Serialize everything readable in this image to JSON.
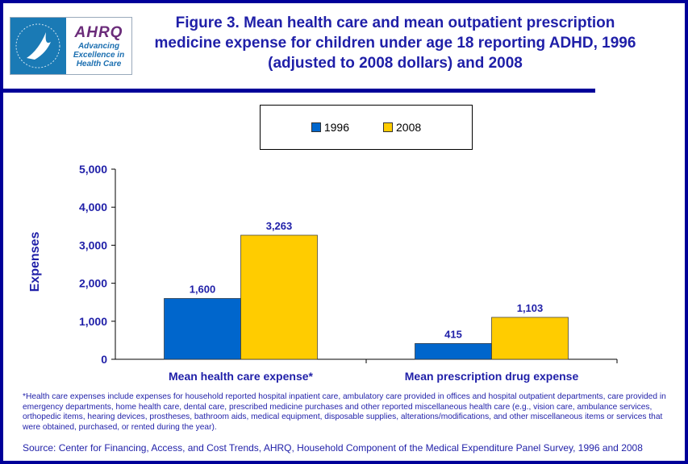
{
  "title": "Figure 3. Mean health care and mean outpatient prescription medicine expense for children under age 18 reporting ADHD, 1996 (adjusted to 2008 dollars) and 2008",
  "logo": {
    "name": "AHRQ",
    "tagline": "Advancing Excellence in Health Care",
    "seal_text": "DEPARTMENT OF HEALTH & HUMAN SERVICES USA"
  },
  "colors": {
    "1996": "#0066cc",
    "2008": "#ffcc00",
    "text": "#1f1fa8",
    "frame": "#000099"
  },
  "chart_data": {
    "type": "bar",
    "categories": [
      "Mean health care expense*",
      "Mean prescription drug expense"
    ],
    "series": [
      {
        "name": "1996",
        "values": [
          1600,
          415
        ],
        "labels": [
          "1,600",
          "415"
        ]
      },
      {
        "name": "2008",
        "values": [
          3263,
          1103
        ],
        "labels": [
          "3,263",
          "1,103"
        ]
      }
    ],
    "ylabel": "Expenses",
    "ylim": [
      0,
      5000
    ],
    "yticks": [
      0,
      1000,
      2000,
      3000,
      4000,
      5000
    ],
    "ytick_labels": [
      "0",
      "1,000",
      "2,000",
      "3,000",
      "4,000",
      "5,000"
    ],
    "grid": false,
    "legend_placement": "top"
  },
  "footnote": "*Health care expenses include expenses for household reported hospital inpatient care, ambulatory care provided in offices and hospital outpatient departments, care provided in emergency departments, home health care, dental care, prescribed medicine purchases and other reported miscellaneous health care (e.g., vision care, ambulance services, orthopedic items, hearing devices, prostheses, bathroom aids, medical equipment, disposable supplies, alterations/modifications, and other miscellaneous items or services that were obtained, purchased, or rented during the year).",
  "source": "Source: Center for Financing, Access, and Cost Trends, AHRQ, Household Component of the Medical Expenditure Panel Survey, 1996 and 2008"
}
